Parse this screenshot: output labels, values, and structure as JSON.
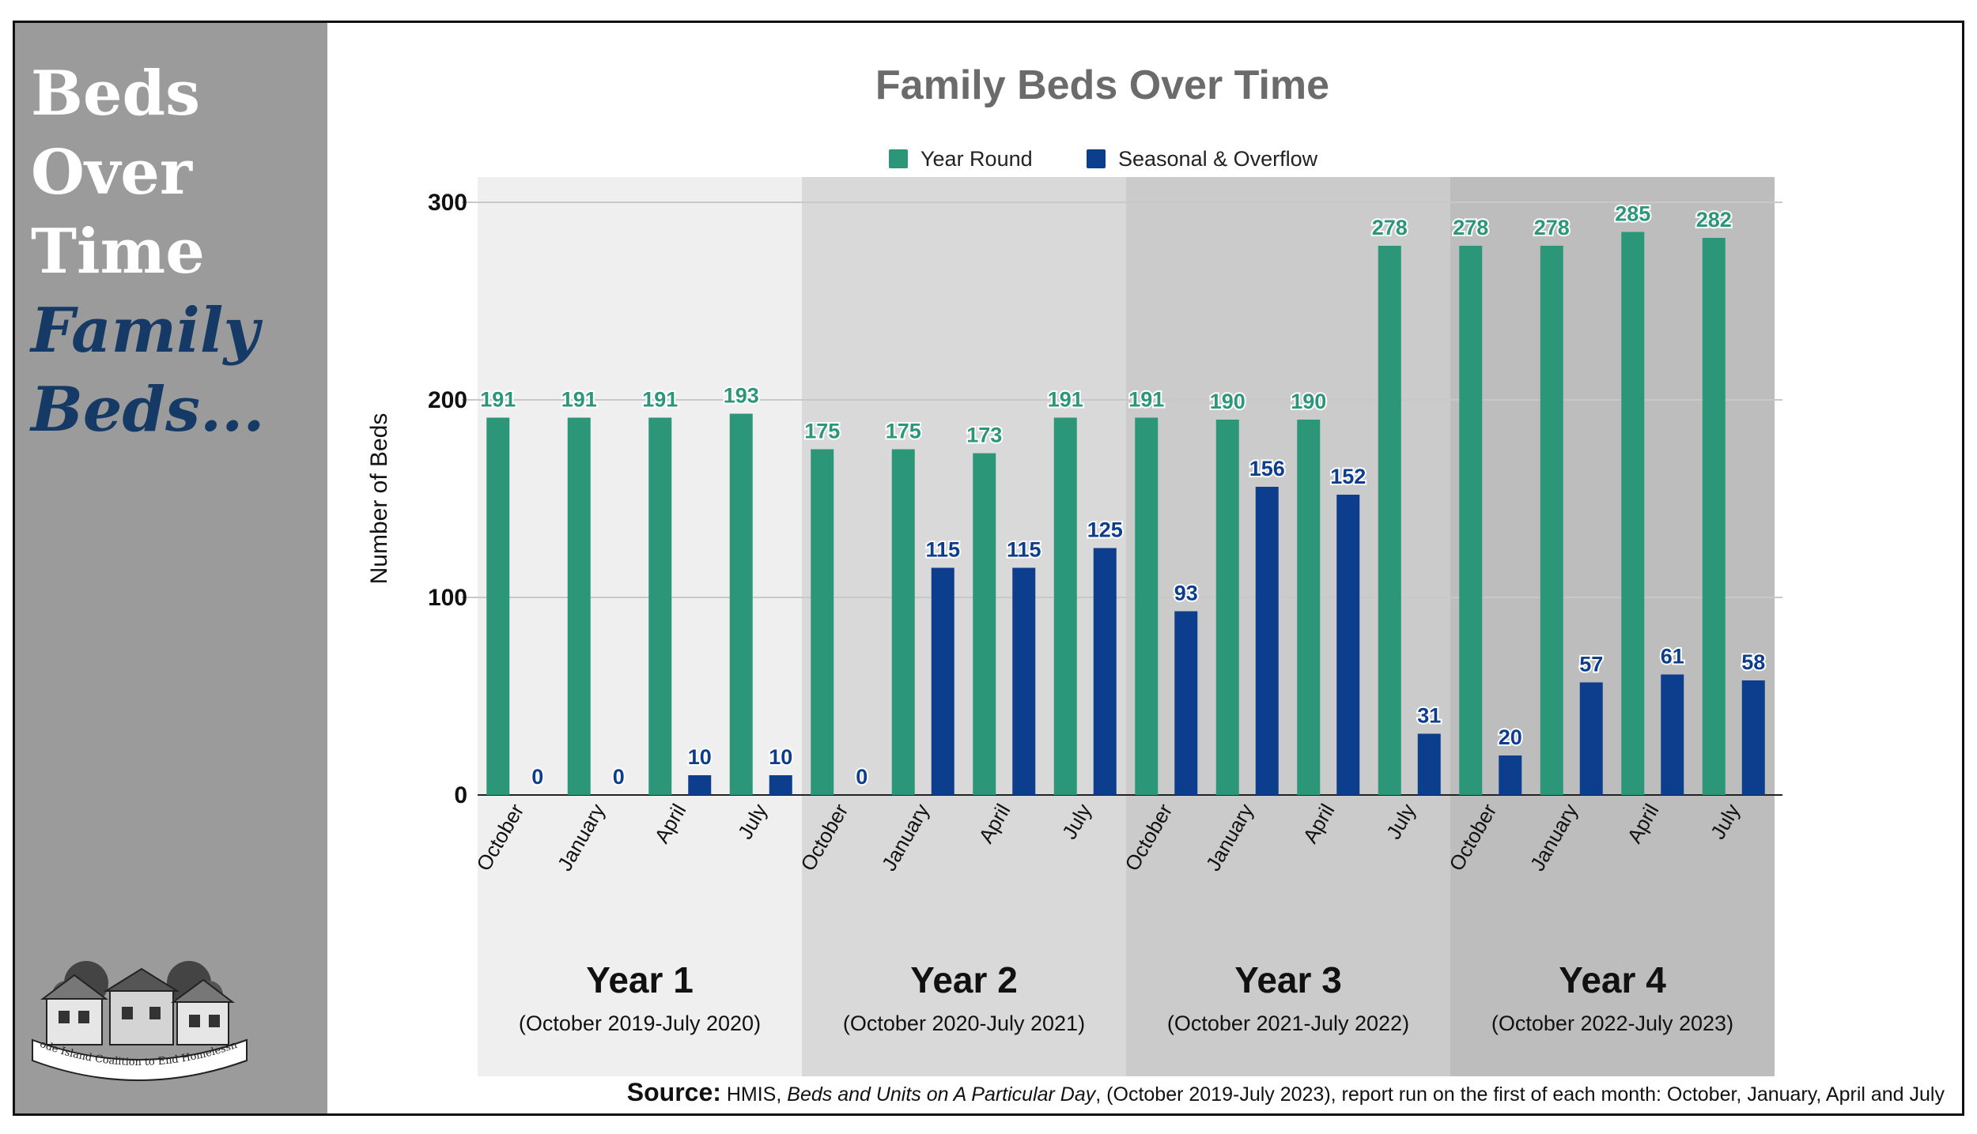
{
  "sidebar": {
    "title_lines": [
      "Beds",
      "Over",
      "Time"
    ],
    "accent_lines": [
      "Family",
      "Beds..."
    ],
    "logo_text": "Rhode Island Coalition to End Homelessness"
  },
  "colors": {
    "year_round": "#2b9678",
    "seasonal": "#0c3e8d",
    "sidebar": "#9b9b9b",
    "accent_text": "#163a66",
    "band_1": "#efefef",
    "band_2": "#d9d9d9",
    "band_3": "#cbcbcb",
    "band_4": "#bdbdbd"
  },
  "source": {
    "label": "Source:",
    "dataset": "HMIS,",
    "report": "Beds and Units on A Particular Day",
    "detail": ", (October 2019-July 2023), report run on the first of each month: October, January, April and July"
  },
  "chart_data": {
    "type": "bar",
    "title": "Family Beds Over Time",
    "ylabel": "Number of Beds",
    "xlabel": "",
    "ylim": [
      0,
      300
    ],
    "yticks": [
      0,
      100,
      200,
      300
    ],
    "grid": true,
    "legend": "top-center",
    "categories": [
      "October",
      "January",
      "April",
      "July",
      "October",
      "January",
      "April",
      "July",
      "October",
      "January",
      "April",
      "July",
      "October",
      "January",
      "April",
      "July"
    ],
    "series": [
      {
        "name": "Year Round",
        "values": [
          191,
          191,
          191,
          193,
          175,
          175,
          173,
          191,
          191,
          190,
          190,
          278,
          278,
          278,
          285,
          282
        ]
      },
      {
        "name": "Seasonal & Overflow",
        "values": [
          0,
          0,
          10,
          10,
          0,
          115,
          115,
          125,
          93,
          156,
          152,
          31,
          20,
          57,
          61,
          58
        ]
      }
    ],
    "groups": [
      {
        "label": "Year 1",
        "sub": "(October 2019-July 2020)"
      },
      {
        "label": "Year 2",
        "sub": "(October 2020-July 2021)"
      },
      {
        "label": "Year 3",
        "sub": "(October 2021-July 2022)"
      },
      {
        "label": "Year 4",
        "sub": "(October 2022-July 2023)"
      }
    ]
  }
}
